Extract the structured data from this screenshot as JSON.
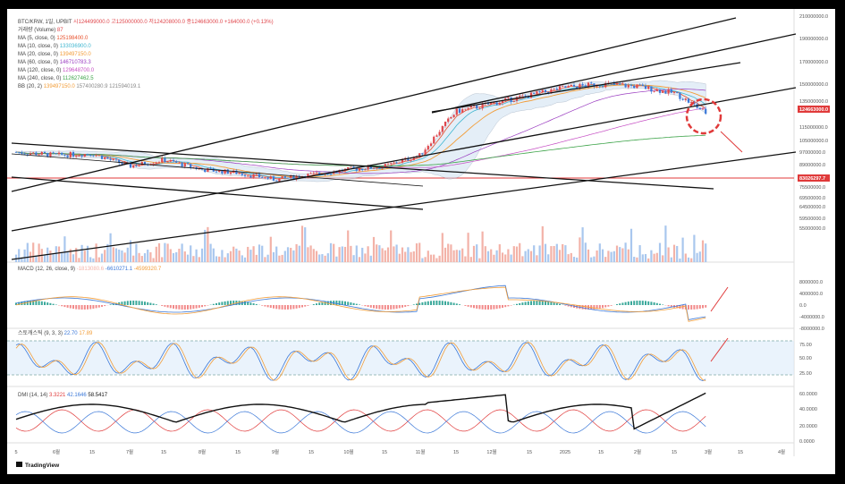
{
  "header": {
    "symbol": "BTC/KRW, 1일, UPBIT",
    "ohlc": "시124499000.0  고125000000.0  저124208000.0  종124663000.0  +164000.0 (+0.13%)",
    "volume_label": "거래량 (Volume)",
    "volume_value": "87",
    "ma": [
      {
        "label": "MA (5, close, 0)",
        "value": "125198400.0",
        "color": "#e8522e"
      },
      {
        "label": "MA (10, close, 0)",
        "value": "133036900.0",
        "color": "#3fb6d0"
      },
      {
        "label": "MA (20, close, 0)",
        "value": "139497150.0",
        "color": "#f29d38"
      },
      {
        "label": "MA (60, close, 0)",
        "value": "146710783.3",
        "color": "#9a3cc0"
      },
      {
        "label": "MA (120, close, 0)",
        "value": "129648700.0",
        "color": "#c64fc4"
      },
      {
        "label": "MA (240, close, 0)",
        "value": "112627462.5",
        "color": "#3ea44a"
      }
    ],
    "bb_label": "BB (20, 2)",
    "bb_values": [
      "139497150.0",
      "157400280.9",
      "121594019.1"
    ]
  },
  "price_axis": [
    "210000000.0",
    "190000000.0",
    "170000000.0",
    "150000000.0",
    "135000000.0",
    "124663000.0",
    "115000000.0",
    "105000000.0",
    "97000000.0",
    "89000000.0",
    "83026297.7",
    "75500000.0",
    "69500000.0",
    "64500000.0",
    "59500000.0",
    "55000000.0"
  ],
  "macd": {
    "label": "MACD (12, 26, close, 9)",
    "v1": "-1813080.6",
    "v2": "-6610271.1",
    "v3": "-4599320.7",
    "axis": [
      "8000000.0",
      "4000000.0",
      "0.0",
      "-4000000.0",
      "-8000000.0"
    ]
  },
  "stoch": {
    "label": "스토캐스틱 (9, 3, 3)",
    "k": "22.70",
    "d": "17.89",
    "axis": [
      "75.00",
      "50.00",
      "25.00"
    ]
  },
  "dmi": {
    "label": "DMI (14, 14)",
    "v1": "3.3221",
    "v2": "42.1646",
    "v3": "58.5417",
    "axis": [
      "60.0000",
      "40.0000",
      "20.0000",
      "0.0000"
    ]
  },
  "time_axis": [
    "5",
    "6월",
    "15",
    "7월",
    "15",
    "8월",
    "15",
    "9월",
    "15",
    "10월",
    "15",
    "11월",
    "15",
    "12월",
    "15",
    "2025",
    "15",
    "2월",
    "15",
    "3월",
    "15",
    "4월"
  ],
  "branding": "TradingView",
  "chart_data": {
    "type": "line",
    "title": "BTC/KRW, 1일, UPBIT",
    "x": [
      "5",
      "6월",
      "15",
      "7월",
      "15",
      "8월",
      "15",
      "9월",
      "15",
      "10월",
      "15",
      "11월",
      "15",
      "12월",
      "15",
      "2025",
      "15",
      "2월",
      "15",
      "3월"
    ],
    "series": [
      {
        "name": "종가",
        "values": [
          97000000,
          95000000,
          96000000,
          88000000,
          92000000,
          86000000,
          84000000,
          80000000,
          83000000,
          86000000,
          88000000,
          95000000,
          127000000,
          133000000,
          140000000,
          147000000,
          150000000,
          148000000,
          142000000,
          124663000
        ]
      }
    ],
    "ylim": [
      55000000,
      210000000
    ],
    "annotations": [
      "124663000.0",
      "83026297.7"
    ],
    "colors": {
      "up": "#e0474c",
      "down": "#3b78d8",
      "highlight": "#e03a3a"
    }
  }
}
